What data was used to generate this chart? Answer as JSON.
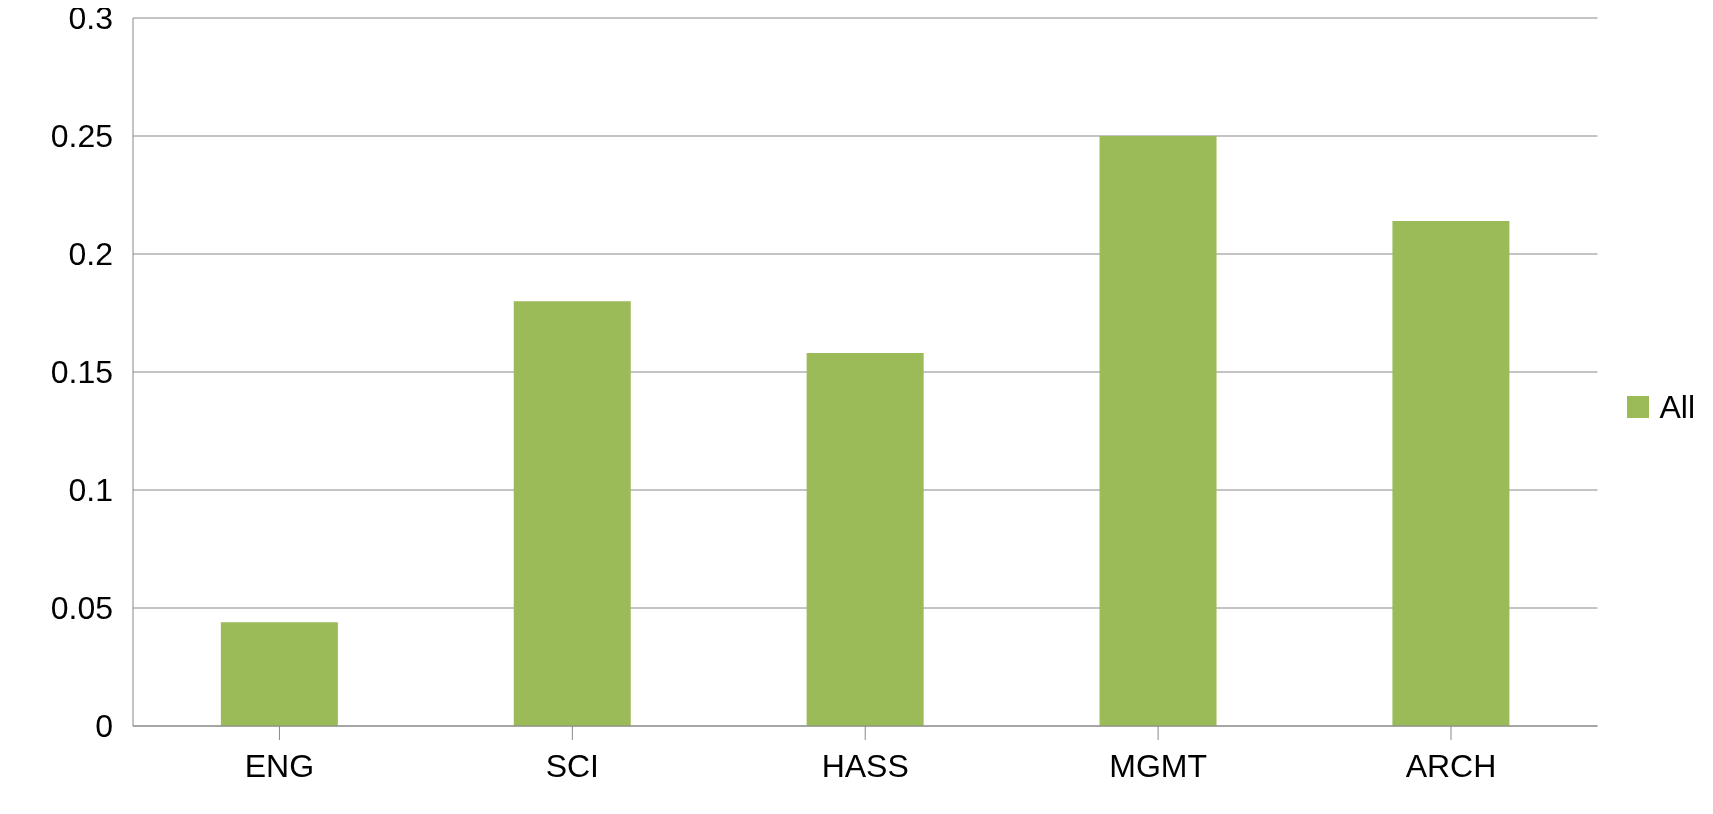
{
  "chart_data": {
    "type": "bar",
    "categories": [
      "ENG",
      "SCI",
      "HASS",
      "MGMT",
      "ARCH"
    ],
    "series": [
      {
        "name": "All",
        "color": "#9bbb59",
        "values": [
          0.044,
          0.18,
          0.158,
          0.25,
          0.214
        ]
      }
    ],
    "ylim": [
      0,
      0.3
    ],
    "yticks": [
      0,
      0.05,
      0.1,
      0.15,
      0.2,
      0.25,
      0.3
    ],
    "grid": "y",
    "legend": "right"
  }
}
